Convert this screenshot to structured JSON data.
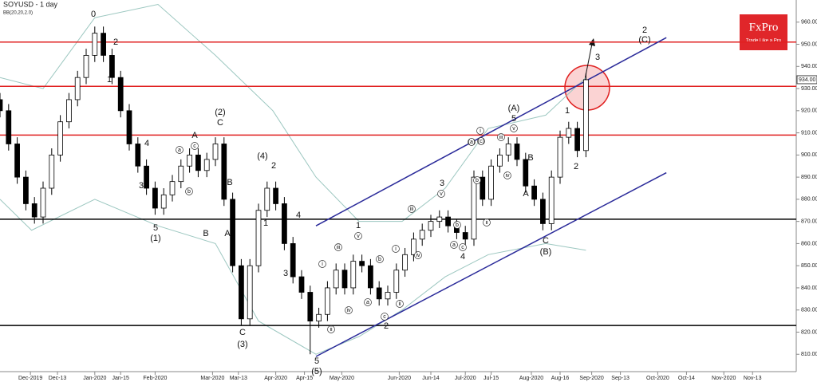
{
  "chart_data": {
    "type": "candlestick",
    "title": "SOYUSD - 1 day",
    "subtitle": "BB(20,20,2.0)",
    "brand": {
      "name": "FxPro",
      "tagline": "Trade Like a Pro"
    },
    "up_color": "#ffffff",
    "down_color": "#000000",
    "band_color": "#9cc7c0",
    "xlim": [
      0,
      275
    ],
    "xticks": [
      {
        "value": 10.6,
        "label": "Dec-2019"
      },
      {
        "value": 20,
        "label": "Dec-13"
      },
      {
        "value": 33,
        "label": "Jan-2020"
      },
      {
        "value": 42,
        "label": "Jan-15"
      },
      {
        "value": 54,
        "label": "Feb-2020"
      },
      {
        "value": 74,
        "label": "Mar-2020"
      },
      {
        "value": 83,
        "label": "Mar-13"
      },
      {
        "value": 96,
        "label": "Apr-2020"
      },
      {
        "value": 106,
        "label": "Apr-15"
      },
      {
        "value": 119,
        "label": "May-2020"
      },
      {
        "value": 139,
        "label": "Jun-2020"
      },
      {
        "value": 150,
        "label": "Jun-14"
      },
      {
        "value": 162,
        "label": "Jul-2020"
      },
      {
        "value": 171,
        "label": "Jul-15"
      },
      {
        "value": 185,
        "label": "Aug-2020"
      },
      {
        "value": 195,
        "label": "Aug-16"
      },
      {
        "value": 206,
        "label": "Sep-2020"
      },
      {
        "value": 216,
        "label": "Sep-13"
      },
      {
        "value": 229,
        "label": "Oct-2020"
      },
      {
        "value": 239,
        "label": "Oct-14"
      },
      {
        "value": 252,
        "label": "Nov-2020"
      },
      {
        "value": 262,
        "label": "Nov-13"
      }
    ],
    "ylim": [
      800,
      970
    ],
    "yticks": [
      {
        "value": 810,
        "label": "810.00"
      },
      {
        "value": 820,
        "label": "820.00"
      },
      {
        "value": 830,
        "label": "830.00"
      },
      {
        "value": 840,
        "label": "840.00"
      },
      {
        "value": 850,
        "label": "850.00"
      },
      {
        "value": 860,
        "label": "860.00"
      },
      {
        "value": 870,
        "label": "870.00"
      },
      {
        "value": 880,
        "label": "880.00"
      },
      {
        "value": 890,
        "label": "890.00"
      },
      {
        "value": 900,
        "label": "900.00"
      },
      {
        "value": 910,
        "label": "910.00"
      },
      {
        "value": 920,
        "label": "920.00"
      },
      {
        "value": 930,
        "label": "930.00"
      },
      {
        "value": 940,
        "label": "940.00"
      },
      {
        "value": 950,
        "label": "950.00"
      },
      {
        "value": 960,
        "label": "960.00"
      }
    ],
    "last_price": {
      "value": 934,
      "label": "934.00"
    },
    "x": [
      0,
      3,
      6,
      9,
      12,
      15,
      18,
      21,
      24,
      27,
      30,
      33,
      36,
      39,
      42,
      45,
      48,
      51,
      54,
      57,
      60,
      63,
      66,
      69,
      72,
      75,
      78,
      81,
      84,
      87,
      90,
      93,
      96,
      99,
      102,
      105,
      108,
      111,
      114,
      117,
      120,
      123,
      126,
      129,
      132,
      135,
      138,
      141,
      144,
      147,
      150,
      153,
      156,
      159,
      162,
      165,
      168,
      171,
      174,
      177,
      180,
      183,
      186,
      189,
      192,
      195,
      198,
      201,
      204
    ],
    "open": [
      925,
      920,
      905,
      890,
      878,
      872,
      885,
      900,
      915,
      925,
      935,
      945,
      955,
      945,
      935,
      920,
      905,
      895,
      885,
      876,
      882,
      888,
      895,
      900,
      893,
      898,
      905,
      880,
      850,
      826,
      850,
      875,
      885,
      878,
      860,
      845,
      838,
      825,
      828,
      840,
      848,
      840,
      852,
      850,
      840,
      835,
      838,
      848,
      855,
      862,
      866,
      870,
      872,
      868,
      865,
      862,
      890,
      880,
      895,
      900,
      905,
      898,
      886,
      880,
      869,
      890,
      908,
      912,
      902
    ],
    "high": [
      928,
      923,
      908,
      893,
      881,
      888,
      903,
      918,
      928,
      938,
      948,
      958,
      958,
      948,
      938,
      923,
      908,
      898,
      888,
      885,
      891,
      898,
      903,
      903,
      901,
      908,
      908,
      883,
      853,
      853,
      878,
      888,
      888,
      881,
      863,
      848,
      841,
      831,
      843,
      851,
      851,
      855,
      855,
      853,
      843,
      841,
      851,
      858,
      865,
      869,
      873,
      875,
      875,
      871,
      868,
      893,
      893,
      898,
      903,
      908,
      908,
      901,
      889,
      883,
      893,
      911,
      915,
      915,
      937
    ],
    "low": [
      917,
      902,
      887,
      875,
      869,
      869,
      882,
      897,
      912,
      922,
      932,
      942,
      942,
      932,
      917,
      902,
      892,
      882,
      873,
      873,
      879,
      885,
      892,
      890,
      890,
      895,
      877,
      847,
      823,
      823,
      847,
      872,
      875,
      857,
      842,
      835,
      810,
      822,
      825,
      837,
      837,
      837,
      847,
      837,
      832,
      832,
      835,
      845,
      852,
      859,
      863,
      867,
      865,
      862,
      859,
      859,
      877,
      877,
      892,
      897,
      895,
      883,
      877,
      866,
      866,
      887,
      905,
      899,
      899
    ],
    "close": [
      920,
      905,
      890,
      878,
      872,
      885,
      900,
      915,
      925,
      935,
      945,
      955,
      945,
      935,
      920,
      905,
      895,
      885,
      876,
      882,
      888,
      895,
      900,
      893,
      898,
      905,
      880,
      850,
      826,
      850,
      875,
      885,
      878,
      860,
      845,
      838,
      825,
      828,
      840,
      848,
      840,
      852,
      850,
      840,
      835,
      838,
      848,
      855,
      862,
      866,
      870,
      872,
      868,
      865,
      862,
      890,
      880,
      895,
      900,
      905,
      898,
      886,
      880,
      869,
      890,
      908,
      912,
      902,
      934
    ],
    "bands": [
      {
        "x": [
          0,
          15,
          33,
          55,
          75,
          95,
          110,
          125,
          140,
          155,
          170,
          190,
          204
        ],
        "values": [
          935,
          930,
          962,
          968,
          945,
          920,
          890,
          870,
          870,
          885,
          912,
          918,
          935
        ]
      },
      {
        "x": [
          0,
          11,
          33,
          55,
          75,
          90,
          110,
          125,
          140,
          155,
          170,
          190,
          204
        ],
        "values": [
          880,
          866,
          880,
          868,
          860,
          825,
          810,
          818,
          830,
          845,
          855,
          860,
          857
        ]
      }
    ],
    "hlines": [
      {
        "value": 951,
        "color": "#e02020"
      },
      {
        "value": 931,
        "color": "#e02020"
      },
      {
        "value": 909,
        "color": "#e02020"
      },
      {
        "value": 871,
        "color": "#000000"
      },
      {
        "value": 823,
        "color": "#000000"
      }
    ],
    "channels": [
      {
        "x": [
          110,
          232
        ],
        "y": [
          868,
          953
        ],
        "color": "#2b2b9a"
      },
      {
        "x": [
          110,
          232
        ],
        "y": [
          809,
          892
        ],
        "color": "#2b2b9a"
      }
    ],
    "annotations": [
      "0",
      "2",
      "1",
      "4",
      "3",
      "5",
      "(1)",
      "A",
      "c",
      "(2)",
      "C",
      "a",
      "b",
      "B",
      "B",
      "A",
      "(4)",
      "2",
      "1",
      "4",
      "3",
      "C",
      "(3)",
      "5",
      "(5)",
      "1",
      "i",
      "ii",
      "iii",
      "iv",
      "v",
      "a",
      "b",
      "c",
      "i",
      "ii",
      "iii",
      "iv",
      "v",
      "3",
      "2",
      "4",
      "a",
      "b",
      "c",
      "(a)",
      "(c)",
      "i",
      "(A)",
      "5",
      "v",
      "iii",
      "b",
      "iv",
      "B",
      "A",
      "ii",
      "C",
      "(B)",
      "1",
      "2",
      "3",
      "2",
      "(C)"
    ]
  }
}
